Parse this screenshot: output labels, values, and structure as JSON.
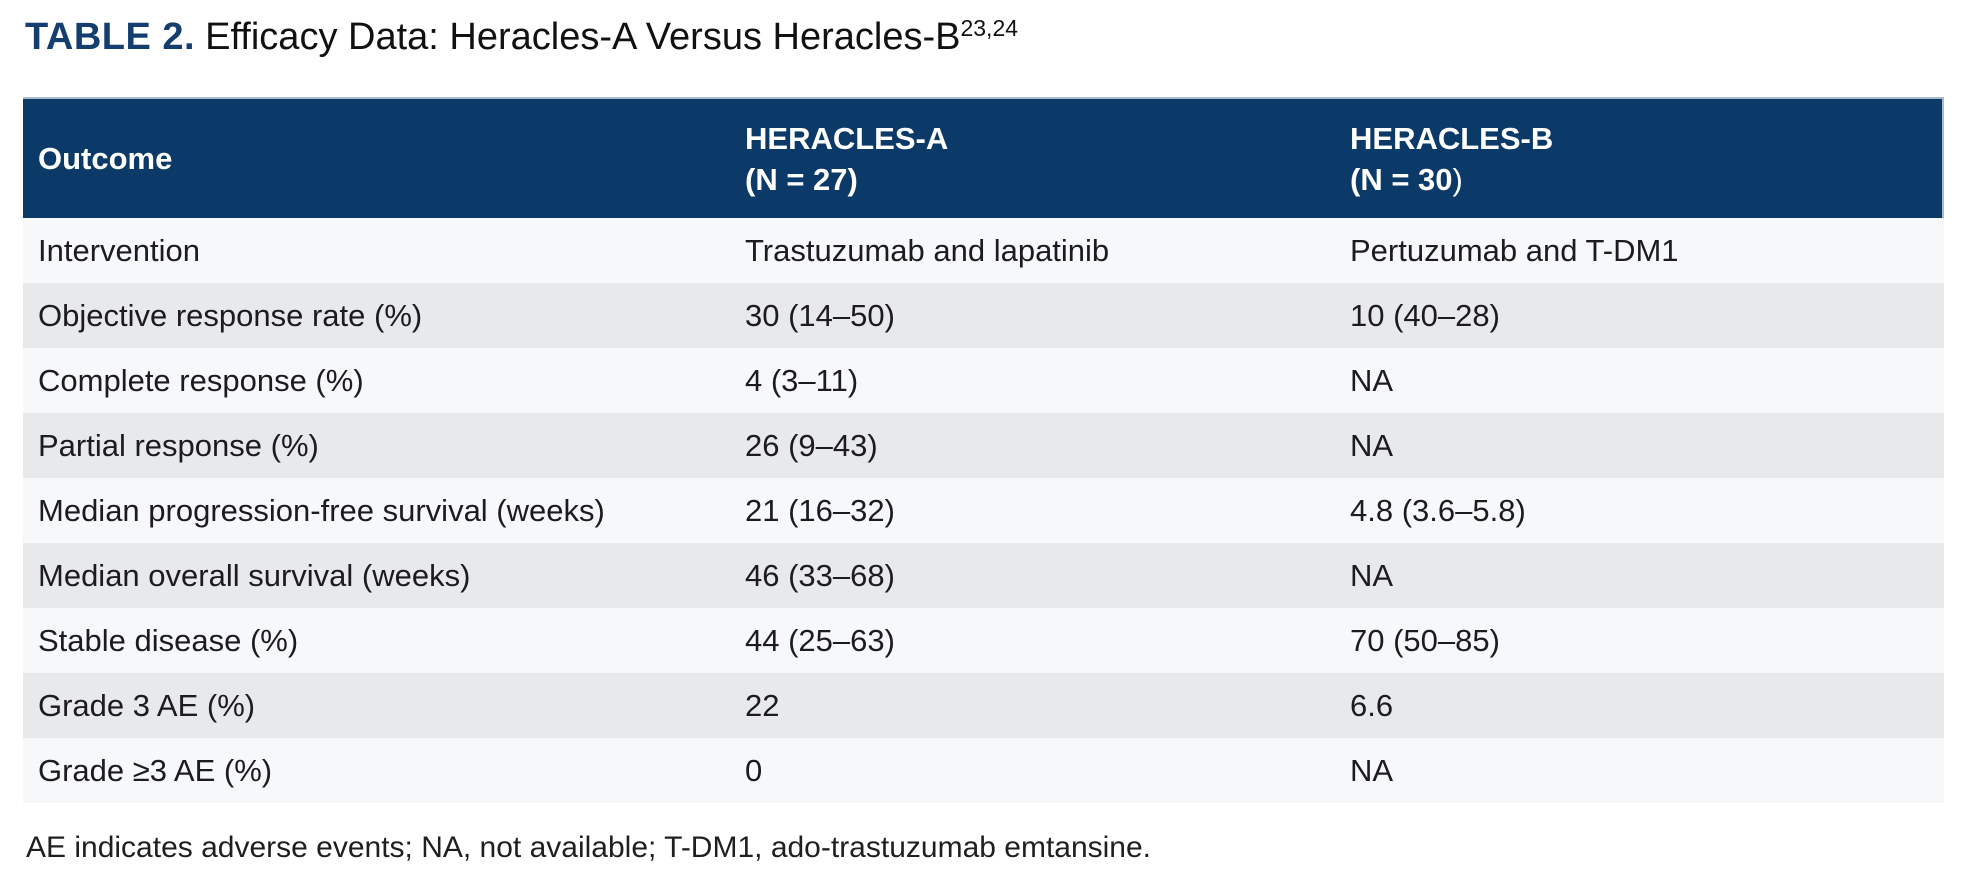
{
  "page": {
    "title_label": "TABLE 2.",
    "title_text": "Efficacy Data: Heracles-A Versus Heracles-B",
    "title_superscript": "23,24",
    "footnote": "AE indicates adverse events; NA, not available; T-DM1, ado-trastuzumab emtansine."
  },
  "colors": {
    "header_bg": "#0c3a68",
    "header_text": "#ffffff",
    "title_accent": "#153e70",
    "row_light": "#f7f8f9",
    "row_alt": "#e8e9ea",
    "body_text": "#1c1c1e"
  },
  "table": {
    "header": {
      "col1": "Outcome",
      "col2_line1": "HERACLES-A",
      "col2_line2": "(N = 27)",
      "col2_line2_tail": "",
      "col3_line1": "HERACLES-B",
      "col3_line2": "(N = 30",
      "col3_line2_tail": ")"
    },
    "rows": [
      {
        "outcome": "Intervention",
        "heracles_a": "Trastuzumab and lapatinib",
        "heracles_b": "Pertuzumab and T-DM1"
      },
      {
        "outcome": "Objective response rate (%)",
        "heracles_a": "30 (14–50)",
        "heracles_b": "10 (40–28)"
      },
      {
        "outcome": "Complete response (%)",
        "heracles_a": "4 (3–11)",
        "heracles_b": "NA"
      },
      {
        "outcome": "Partial response (%)",
        "heracles_a": "26 (9–43)",
        "heracles_b": "NA"
      },
      {
        "outcome": "Median progression-free survival (weeks)",
        "heracles_a": "21 (16–32)",
        "heracles_b": "4.8 (3.6–5.8)"
      },
      {
        "outcome": "Median overall survival (weeks)",
        "heracles_a": "46 (33–68)",
        "heracles_b": "NA"
      },
      {
        "outcome": "Stable disease (%)",
        "heracles_a": "44 (25–63)",
        "heracles_b": "70 (50–85)"
      },
      {
        "outcome": "Grade 3 AE (%)",
        "heracles_a": "22",
        "heracles_b": "6.6"
      },
      {
        "outcome": "Grade ≥3 AE (%)",
        "heracles_a": "0",
        "heracles_b": "NA"
      }
    ]
  }
}
